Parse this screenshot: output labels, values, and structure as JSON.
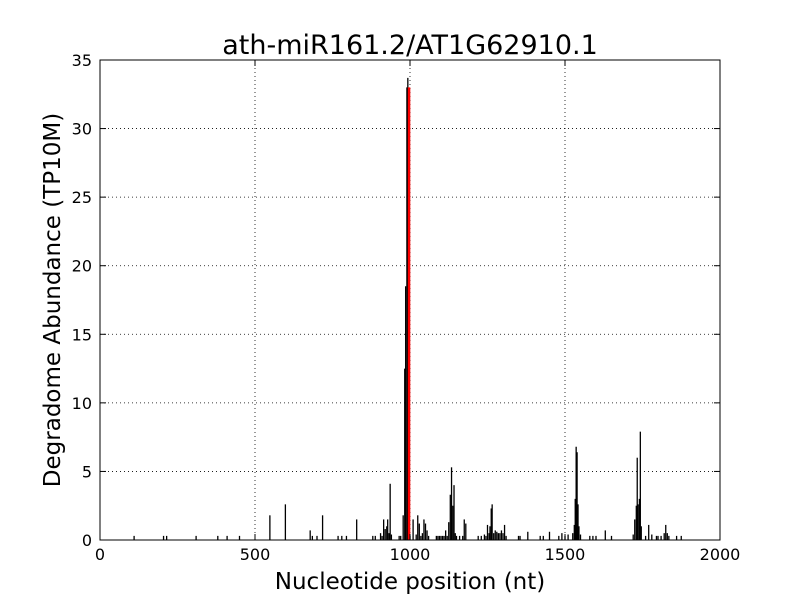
{
  "chart_data": {
    "type": "bar",
    "title": "ath-miR161.2/AT1G62910.1",
    "xlabel": "Nucleotide position (nt)",
    "ylabel": "Degradome Abundance (TP10M)",
    "xlim": [
      0,
      2000
    ],
    "ylim": [
      0,
      35
    ],
    "xticks": [
      0,
      500,
      1000,
      1500,
      2000
    ],
    "yticks": [
      0,
      5,
      10,
      15,
      20,
      25,
      30,
      35
    ],
    "grid": true,
    "colors": {
      "bars": "#000000",
      "highlight": "#ff0000",
      "grid": "#000000"
    },
    "series": [
      {
        "values": [
          [
            110,
            0.3
          ],
          [
            205,
            0.3
          ],
          [
            215,
            0.3
          ],
          [
            310,
            0.3
          ],
          [
            380,
            0.3
          ],
          [
            410,
            0.3
          ],
          [
            450,
            0.3
          ],
          [
            548,
            1.8
          ],
          [
            598,
            2.6
          ],
          [
            678,
            0.7
          ],
          [
            685,
            0.3
          ],
          [
            700,
            0.3
          ],
          [
            718,
            1.8
          ],
          [
            768,
            0.3
          ],
          [
            780,
            0.3
          ],
          [
            795,
            0.3
          ],
          [
            828,
            1.5
          ],
          [
            880,
            0.3
          ],
          [
            888,
            0.3
          ],
          [
            905,
            0.5
          ],
          [
            910,
            0.3
          ],
          [
            915,
            1.5
          ],
          [
            920,
            0.8
          ],
          [
            925,
            1.0
          ],
          [
            928,
            1.5
          ],
          [
            932,
            0.5
          ],
          [
            936,
            4.1
          ],
          [
            940,
            0.4
          ],
          [
            965,
            0.3
          ],
          [
            970,
            0.3
          ],
          [
            978,
            1.8
          ],
          [
            983,
            12.5
          ],
          [
            986,
            18.5
          ],
          [
            990,
            33.0
          ],
          [
            993,
            33.7
          ],
          [
            1000,
            0.3
          ],
          [
            1010,
            1.5
          ],
          [
            1020,
            0.4
          ],
          [
            1025,
            1.8
          ],
          [
            1030,
            1.2
          ],
          [
            1035,
            0.3
          ],
          [
            1040,
            0.5
          ],
          [
            1045,
            1.5
          ],
          [
            1050,
            1.2
          ],
          [
            1055,
            0.7
          ],
          [
            1060,
            0.3
          ],
          [
            1085,
            0.3
          ],
          [
            1090,
            0.3
          ],
          [
            1095,
            0.3
          ],
          [
            1100,
            0.3
          ],
          [
            1105,
            0.3
          ],
          [
            1110,
            0.3
          ],
          [
            1115,
            0.7
          ],
          [
            1120,
            0.3
          ],
          [
            1125,
            1.3
          ],
          [
            1130,
            3.3
          ],
          [
            1134,
            5.3
          ],
          [
            1138,
            2.5
          ],
          [
            1142,
            4.0
          ],
          [
            1146,
            0.5
          ],
          [
            1150,
            0.3
          ],
          [
            1160,
            0.3
          ],
          [
            1170,
            0.3
          ],
          [
            1175,
            1.5
          ],
          [
            1180,
            1.2
          ],
          [
            1220,
            0.3
          ],
          [
            1230,
            0.3
          ],
          [
            1240,
            0.4
          ],
          [
            1245,
            0.3
          ],
          [
            1250,
            1.1
          ],
          [
            1255,
            0.5
          ],
          [
            1258,
            1.0
          ],
          [
            1262,
            2.3
          ],
          [
            1265,
            2.6
          ],
          [
            1270,
            0.5
          ],
          [
            1275,
            0.7
          ],
          [
            1280,
            0.6
          ],
          [
            1285,
            0.5
          ],
          [
            1290,
            0.5
          ],
          [
            1295,
            0.7
          ],
          [
            1300,
            0.5
          ],
          [
            1305,
            1.1
          ],
          [
            1310,
            0.3
          ],
          [
            1350,
            0.3
          ],
          [
            1355,
            0.3
          ],
          [
            1380,
            0.6
          ],
          [
            1420,
            0.3
          ],
          [
            1430,
            0.3
          ],
          [
            1450,
            0.6
          ],
          [
            1480,
            0.3
          ],
          [
            1490,
            0.5
          ],
          [
            1500,
            0.3
          ],
          [
            1510,
            0.4
          ],
          [
            1525,
            0.5
          ],
          [
            1530,
            1.1
          ],
          [
            1533,
            3.0
          ],
          [
            1536,
            6.8
          ],
          [
            1539,
            6.4
          ],
          [
            1542,
            2.6
          ],
          [
            1545,
            1.0
          ],
          [
            1550,
            0.4
          ],
          [
            1580,
            0.3
          ],
          [
            1590,
            0.3
          ],
          [
            1600,
            0.3
          ],
          [
            1630,
            0.7
          ],
          [
            1650,
            0.3
          ],
          [
            1720,
            0.4
          ],
          [
            1725,
            1.5
          ],
          [
            1730,
            2.5
          ],
          [
            1733,
            6.0
          ],
          [
            1736,
            2.6
          ],
          [
            1740,
            3.0
          ],
          [
            1743,
            7.9
          ],
          [
            1746,
            1.0
          ],
          [
            1760,
            0.3
          ],
          [
            1770,
            1.1
          ],
          [
            1780,
            0.4
          ],
          [
            1795,
            0.3
          ],
          [
            1800,
            0.3
          ],
          [
            1810,
            0.3
          ],
          [
            1820,
            0.5
          ],
          [
            1825,
            1.1
          ],
          [
            1830,
            0.5
          ],
          [
            1835,
            0.3
          ],
          [
            1860,
            0.3
          ],
          [
            1875,
            0.3
          ]
        ]
      }
    ],
    "highlight": {
      "x": 997,
      "y": 33.0
    }
  }
}
